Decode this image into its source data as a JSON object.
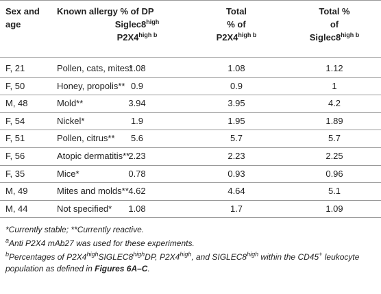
{
  "table": {
    "header": [
      [
        [
          {
            "text": "Sex and"
          }
        ],
        [
          {
            "text": "age"
          }
        ]
      ],
      [
        [
          {
            "text": "Known allergy"
          }
        ]
      ],
      [
        [
          {
            "text": "% of DP"
          }
        ],
        [
          {
            "text": "Siglec8"
          },
          {
            "text": "high",
            "style": "sup"
          }
        ],
        [
          {
            "text": "P2X4"
          },
          {
            "text": "high b",
            "style": "sup"
          }
        ]
      ],
      [
        [
          {
            "text": "Total"
          }
        ],
        [
          {
            "text": "% of"
          }
        ],
        [
          {
            "text": "P2X4"
          },
          {
            "text": "high b",
            "style": "sup"
          }
        ]
      ],
      [
        [
          {
            "text": "Total %"
          }
        ],
        [
          {
            "text": "of"
          }
        ],
        [
          {
            "text": "Siglec8"
          },
          {
            "text": "high b",
            "style": "sup"
          }
        ]
      ]
    ],
    "rows": [
      [
        "F, 21",
        "Pollen, cats, mites*",
        1.08,
        1.08,
        1.12
      ],
      [
        "F, 50",
        "Honey, propolis**",
        0.9,
        0.9,
        1
      ],
      [
        "M, 48",
        "Mold**",
        3.94,
        3.95,
        4.2
      ],
      [
        "F, 54",
        "Nickel*",
        1.9,
        1.95,
        1.89
      ],
      [
        "F, 51",
        "Pollen, citrus**",
        5.6,
        5.7,
        5.7
      ],
      [
        "F, 56",
        "Atopic dermatitis**",
        2.23,
        2.23,
        2.25
      ],
      [
        "F, 35",
        "Mice*",
        0.78,
        0.93,
        0.96
      ],
      [
        "M, 49",
        "Mites and molds**",
        4.62,
        4.64,
        5.1
      ],
      [
        "M, 44",
        "Not specified*",
        1.08,
        1.7,
        1.09
      ]
    ],
    "footnotes": [
      [
        {
          "text": "*Currently stable; **Currently reactive."
        }
      ],
      [
        {
          "text": "a",
          "style": "sup"
        },
        {
          "text": "Anti P2X4 mAb27 was used for these experiments."
        }
      ],
      [
        {
          "text": "b",
          "style": "sup"
        },
        {
          "text": "Percentages of P2X4"
        },
        {
          "text": "high",
          "style": "sup"
        },
        {
          "text": "SIGLEC8"
        },
        {
          "text": "high",
          "style": "sup"
        },
        {
          "text": "DP, P2X4"
        },
        {
          "text": "high",
          "style": "sup"
        },
        {
          "text": ", and SIGLEC8"
        },
        {
          "text": "high",
          "style": "sup"
        },
        {
          "text": " within the CD45"
        },
        {
          "text": "+",
          "style": "sup"
        },
        {
          "text": " leukocyte population as defined in "
        },
        {
          "text": "Figures 6A–C",
          "style": "bold"
        },
        {
          "text": "."
        }
      ]
    ]
  }
}
